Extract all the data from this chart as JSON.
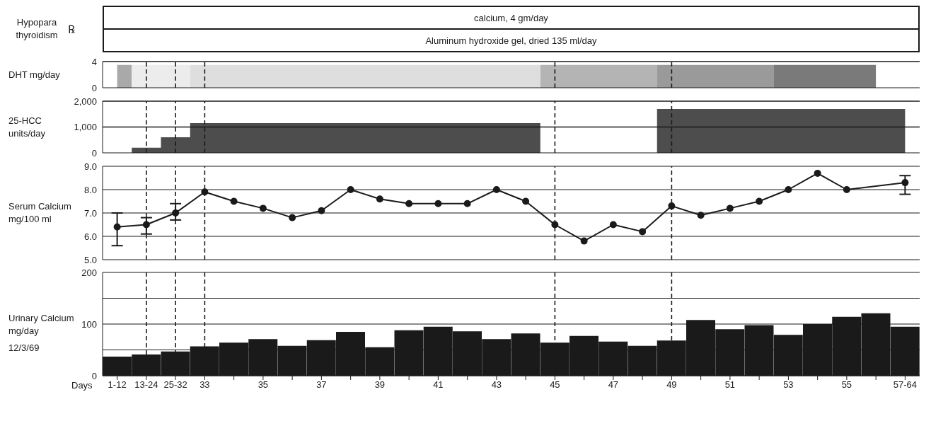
{
  "chart_data": [
    {
      "type": "other",
      "title": "Hypopara thyroidism",
      "ylabel": "℞",
      "annotations": [
        "calcium, 4 gm/day",
        "Aluminum hydroxide gel, dried 135 ml/day"
      ]
    },
    {
      "type": "area",
      "ylabel": "DHT mg/day",
      "categories": [
        "1-12",
        "13-24",
        "25-32",
        "33",
        null,
        "35",
        null,
        "37",
        null,
        "39",
        null,
        "41",
        null,
        "43",
        null,
        "45",
        null,
        "47",
        null,
        "49",
        null,
        "51",
        null,
        "53",
        null,
        "55",
        null,
        "57-64"
      ],
      "values": [
        3.5,
        3.5,
        3.5,
        3.5,
        3.5,
        3.5,
        3.5,
        3.5,
        3.5,
        3.5,
        3.5,
        3.5,
        3.5,
        3.5,
        3.5,
        3.5,
        3.5,
        3.5,
        3.5,
        3.5,
        3.5,
        3.5,
        3.5,
        3.5,
        3.5,
        3.5,
        3.5,
        null
      ],
      "colors": [
        "#a9a9a9",
        "#ececec",
        "#ececec",
        "#dedede",
        "#dedede",
        "#dedede",
        "#dedede",
        "#dedede",
        "#dedede",
        "#dedede",
        "#dedede",
        "#dedede",
        "#dedede",
        "#dedede",
        "#dedede",
        "#b4b4b4",
        "#b4b4b4",
        "#b4b4b4",
        "#b4b4b4",
        "#9a9a9a",
        "#9a9a9a",
        "#9a9a9a",
        "#9a9a9a",
        "#7a7a7a",
        "#7a7a7a",
        "#7a7a7a",
        "#7a7a7a",
        "#ffffff"
      ],
      "ylim": [
        0,
        4
      ],
      "yticks": [
        0,
        4
      ],
      "tick_labels": "y",
      "ref_lines": [
        {
          "axis": "y",
          "value": 4,
          "line_style": "solid"
        },
        {
          "axis": "x",
          "value": "13-24",
          "line_style": "dashed"
        },
        {
          "axis": "x",
          "value": "25-32",
          "line_style": "dashed"
        },
        {
          "axis": "x",
          "value": "33",
          "line_style": "dashed"
        },
        {
          "axis": "x",
          "value": "45",
          "line_style": "dashed"
        },
        {
          "axis": "x",
          "value": "49",
          "line_style": "dashed"
        }
      ]
    },
    {
      "type": "area",
      "ylabel": "25-HCC units/day",
      "categories": [
        "1-12",
        "13-24",
        "25-32",
        "33",
        null,
        "35",
        null,
        "37",
        null,
        "39",
        null,
        "41",
        null,
        "43",
        null,
        "45",
        null,
        "47",
        null,
        "49",
        null,
        "51",
        null,
        "53",
        null,
        "55",
        null,
        "57-64"
      ],
      "values": [
        0,
        200,
        600,
        1150,
        1150,
        1150,
        1150,
        1150,
        1150,
        1150,
        1150,
        1150,
        1150,
        1150,
        1150,
        0,
        0,
        0,
        0,
        1700,
        1700,
        1700,
        1700,
        1700,
        1700,
        1700,
        1700,
        1700
      ],
      "color": "#4d4d4d",
      "ylim": [
        0,
        2000
      ],
      "yticks": [
        0,
        {
          "value": 1000,
          "label": "1,000"
        },
        {
          "value": 2000,
          "label": "2,000"
        }
      ],
      "tick_labels": "y",
      "ref_lines": [
        {
          "axis": "y",
          "value": 1000,
          "line_style": "solid"
        },
        {
          "axis": "y",
          "value": 2000,
          "line_style": "solid"
        },
        {
          "axis": "x",
          "value": "13-24",
          "line_style": "dashed"
        },
        {
          "axis": "x",
          "value": "25-32",
          "line_style": "dashed"
        },
        {
          "axis": "x",
          "value": "33",
          "line_style": "dashed"
        },
        {
          "axis": "x",
          "value": "45",
          "line_style": "dashed"
        },
        {
          "axis": "x",
          "value": "49",
          "line_style": "dashed"
        }
      ]
    },
    {
      "type": "line",
      "ylabel": "Serum Calcium mg/100 ml",
      "categories": [
        "1-12",
        "13-24",
        "25-32",
        "33",
        null,
        "35",
        null,
        "37",
        null,
        "39",
        null,
        "41",
        null,
        "43",
        null,
        "45",
        null,
        "47",
        null,
        "49",
        null,
        "51",
        null,
        "53",
        null,
        "55",
        null,
        "57-64"
      ],
      "values": [
        6.4,
        6.5,
        7.0,
        7.9,
        7.5,
        7.2,
        6.8,
        7.1,
        8.0,
        7.6,
        7.4,
        7.4,
        7.4,
        8.0,
        7.5,
        6.5,
        5.8,
        6.5,
        6.2,
        7.3,
        6.9,
        7.2,
        7.5,
        8.0,
        8.7,
        8.0,
        null,
        8.3
      ],
      "errors": [
        [
          5.6,
          7.0
        ],
        [
          6.1,
          6.8
        ],
        [
          6.7,
          7.4
        ],
        null,
        null,
        null,
        null,
        null,
        null,
        null,
        null,
        null,
        null,
        null,
        null,
        null,
        null,
        null,
        null,
        null,
        null,
        null,
        null,
        null,
        null,
        null,
        null,
        [
          7.8,
          8.6
        ]
      ],
      "color": "#1a1a1a",
      "marker": "circle",
      "line_style": "solid",
      "ylim": [
        5,
        9
      ],
      "yticks": [
        {
          "value": 5,
          "label": "5.0"
        },
        {
          "value": 6,
          "label": "6.0"
        },
        {
          "value": 7,
          "label": "7.0"
        },
        {
          "value": 8,
          "label": "8.0"
        },
        {
          "value": 9,
          "label": "9.0"
        }
      ],
      "grid": "y",
      "tick_labels": "y",
      "ref_lines": [
        {
          "axis": "x",
          "value": "13-24",
          "line_style": "dashed"
        },
        {
          "axis": "x",
          "value": "25-32",
          "line_style": "dashed"
        },
        {
          "axis": "x",
          "value": "33",
          "line_style": "dashed"
        },
        {
          "axis": "x",
          "value": "45",
          "line_style": "dashed"
        },
        {
          "axis": "x",
          "value": "49",
          "line_style": "dashed"
        }
      ]
    },
    {
      "type": "bar",
      "ylabel": "Urinary Calcium mg/day",
      "xlabel": "Days",
      "annotations": [
        "12/3/69"
      ],
      "categories": [
        "1-12",
        "13-24",
        "25-32",
        "33",
        null,
        "35",
        null,
        "37",
        null,
        "39",
        null,
        "41",
        null,
        "43",
        null,
        "45",
        null,
        "47",
        null,
        "49",
        null,
        "51",
        null,
        "53",
        null,
        "55",
        null,
        "57-64"
      ],
      "values": [
        37,
        41,
        47,
        57,
        64,
        71,
        58,
        69,
        85,
        55,
        88,
        95,
        86,
        71,
        82,
        64,
        77,
        66,
        58,
        68,
        108,
        90,
        98,
        79,
        100,
        114,
        121,
        95
      ],
      "color": "#1a1a1a",
      "ylim": [
        0,
        200
      ],
      "yticks": [
        0,
        {
          "value": 50,
          "label": null
        },
        100,
        {
          "value": 150,
          "label": null
        },
        200
      ],
      "grid": "y",
      "ref_lines": [
        {
          "axis": "x",
          "value": "13-24",
          "line_style": "dashed"
        },
        {
          "axis": "x",
          "value": "25-32",
          "line_style": "dashed"
        },
        {
          "axis": "x",
          "value": "33",
          "line_style": "dashed"
        },
        {
          "axis": "x",
          "value": "45",
          "line_style": "dashed"
        },
        {
          "axis": "x",
          "value": "49",
          "line_style": "dashed"
        }
      ]
    }
  ]
}
